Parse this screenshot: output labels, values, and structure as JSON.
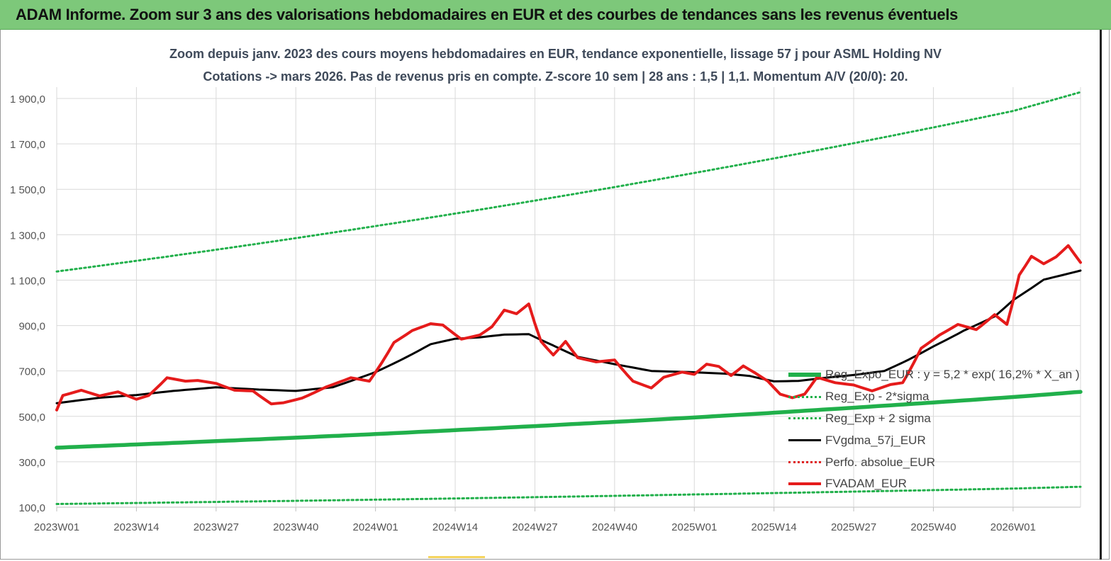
{
  "banner": {
    "title": "ADAM Informe. Zoom sur 3 ans des valorisations hebdomadaires en EUR et des courbes de tendances sans les revenus éventuels",
    "bg_color": "#7dc87a"
  },
  "chart_data": {
    "type": "line",
    "title_line1": "Zoom depuis janv. 2023 des cours moyens hebdomadaires en EUR, tendance exponentielle, lissage 57 j pour ASML Holding NV",
    "title_line2": "Cotations -> mars 2026. Pas de revenus pris en compte. Z-score 10 sem  | 28 ans : 1,5 | 1,1. Momentum A/V (20/0): 20.",
    "xlabel": "",
    "ylabel": "",
    "ylim": [
      100,
      1950
    ],
    "yticks": [
      "100,0",
      "300,0",
      "500,0",
      "700,0",
      "900,0",
      "1 100,0",
      "1 300,0",
      "1 500,0",
      "1 700,0",
      "1 900,0"
    ],
    "ytick_values": [
      100,
      300,
      500,
      700,
      900,
      1100,
      1300,
      1500,
      1700,
      1900
    ],
    "xtick_labels": [
      "2023W01",
      "2023W14",
      "2023W27",
      "2023W40",
      "2024W01",
      "2024W14",
      "2024W27",
      "2024W40",
      "2025W01",
      "2025W14",
      "2025W27",
      "2025W40",
      "2026W01"
    ],
    "grid": true,
    "legend_position": "right",
    "series": [
      {
        "name": "Reg_Expo_EUR : y = 5,2 * exp( 16,2% *  X_an )",
        "color": "#21b04b",
        "style": "thick",
        "x": [
          "2023W01",
          "2024W01",
          "2025W01",
          "2026W01",
          "2026W12"
        ],
        "values": [
          362,
          422,
          495,
          585,
          608
        ]
      },
      {
        "name": "Reg_Exp - 2*sigma",
        "color": "#21b04b",
        "style": "dotted",
        "x": [
          "2023W01",
          "2024W01",
          "2025W01",
          "2026W01",
          "2026W12"
        ],
        "values": [
          114,
          133,
          156,
          182,
          190
        ]
      },
      {
        "name": "Reg_Exp + 2 sigma",
        "color": "#21b04b",
        "style": "dotted",
        "x": [
          "2023W01",
          "2024W01",
          "2025W01",
          "2026W01",
          "2026W12"
        ],
        "values": [
          1138,
          1338,
          1572,
          1845,
          1928
        ]
      },
      {
        "name": "FVgdma_57j_EUR",
        "color": "#000000",
        "style": "solid",
        "x": [
          "2023W01",
          "2023W08",
          "2023W14",
          "2023W20",
          "2023W27",
          "2023W34",
          "2023W40",
          "2023W46",
          "2024W01",
          "2024W06",
          "2024W10",
          "2024W14",
          "2024W18",
          "2024W22",
          "2024W26",
          "2024W30",
          "2024W34",
          "2024W40",
          "2024W46",
          "2025W01",
          "2025W06",
          "2025W10",
          "2025W14",
          "2025W18",
          "2025W23",
          "2025W27",
          "2025W32",
          "2025W36",
          "2025W40",
          "2025W45",
          "2025W50",
          "2026W01",
          "2026W06",
          "2026W12"
        ],
        "values": [
          558,
          582,
          594,
          612,
          628,
          618,
          612,
          628,
          695,
          760,
          818,
          842,
          848,
          860,
          862,
          812,
          762,
          730,
          700,
          694,
          688,
          678,
          654,
          656,
          672,
          682,
          700,
          750,
          808,
          878,
          940,
          1012,
          1102,
          1142
        ]
      },
      {
        "name": "Perfo. absolue_EUR",
        "color": "#e02020",
        "style": "dotted",
        "x": [],
        "values": []
      },
      {
        "name": "FVADAM_EUR",
        "color": "#e51b1b",
        "style": "thick",
        "x": [
          "2023W01",
          "2023W02",
          "2023W05",
          "2023W08",
          "2023W11",
          "2023W14",
          "2023W16",
          "2023W19",
          "2023W22",
          "2023W24",
          "2023W27",
          "2023W30",
          "2023W33",
          "2023W36",
          "2023W38",
          "2023W41",
          "2023W45",
          "2023W49",
          "2023W52",
          "2024W04",
          "2024W07",
          "2024W10",
          "2024W12",
          "2024W15",
          "2024W18",
          "2024W20",
          "2024W22",
          "2024W24",
          "2024W26",
          "2024W28",
          "2024W30",
          "2024W32",
          "2024W34",
          "2024W37",
          "2024W40",
          "2024W43",
          "2024W46",
          "2024W48",
          "2024W51",
          "2025W01",
          "2025W03",
          "2025W05",
          "2025W07",
          "2025W09",
          "2025W11",
          "2025W13",
          "2025W15",
          "2025W17",
          "2025W19",
          "2025W21",
          "2025W24",
          "2025W27",
          "2025W30",
          "2025W33",
          "2025W35",
          "2025W38",
          "2025W41",
          "2025W44",
          "2025W47",
          "2025W50",
          "2025W52",
          "2026W02",
          "2026W04",
          "2026W06",
          "2026W08",
          "2026W10",
          "2026W12"
        ],
        "values": [
          528,
          592,
          615,
          590,
          608,
          575,
          592,
          670,
          655,
          658,
          645,
          615,
          612,
          555,
          560,
          580,
          630,
          670,
          655,
          825,
          878,
          908,
          902,
          840,
          858,
          895,
          968,
          952,
          995,
          830,
          770,
          830,
          758,
          740,
          748,
          655,
          625,
          672,
          695,
          685,
          730,
          720,
          680,
          722,
          690,
          655,
          598,
          582,
          598,
          672,
          648,
          638,
          612,
          640,
          648,
          800,
          858,
          905,
          882,
          948,
          905,
          1122,
          1205,
          1172,
          1202,
          1252,
          1178
        ]
      }
    ]
  }
}
